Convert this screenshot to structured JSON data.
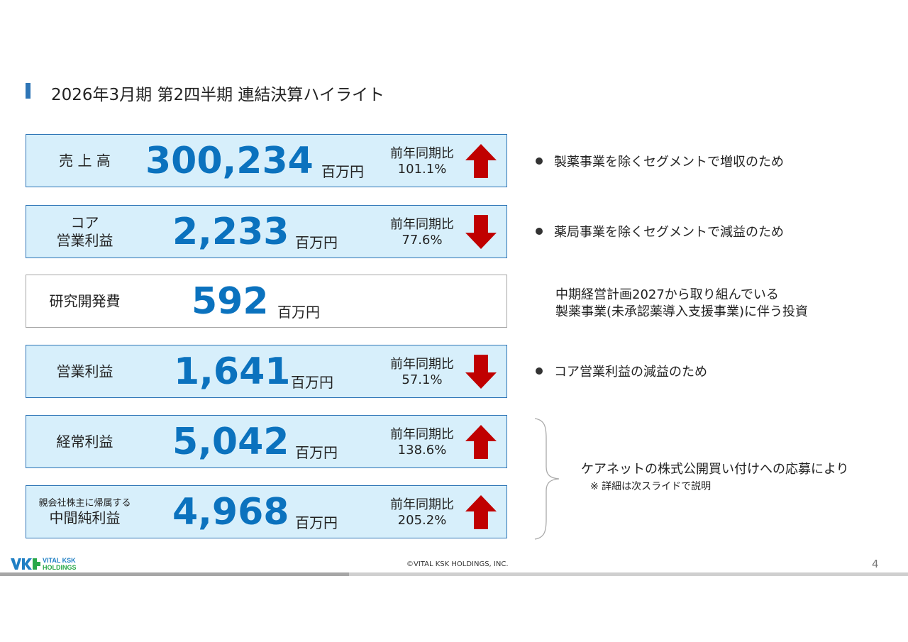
{
  "title": "2026年3月期  第2四半期  連結決算ハイライト",
  "rows": [
    {
      "label": "売 上 高",
      "value": "300,234",
      "unit": "百万円",
      "cmp_label": "前年同期比",
      "cmp_value": "101.1%",
      "trend": "up-arrow-icon"
    },
    {
      "label_line1": "コア",
      "label": "営業利益",
      "value": "2,233",
      "unit": "百万円",
      "cmp_label": "前年同期比",
      "cmp_value": "77.6%",
      "trend": "down-arrow-icon"
    },
    {
      "label": "研究開発費",
      "value": "592",
      "unit": "百万円"
    },
    {
      "label": "営業利益",
      "value": "1,641",
      "unit": "百万円",
      "cmp_label": "前年同期比",
      "cmp_value": "57.1%",
      "trend": "down-arrow-icon"
    },
    {
      "label": "経常利益",
      "value": "5,042",
      "unit": "百万円",
      "cmp_label": "前年同期比",
      "cmp_value": "138.6%",
      "trend": "up-arrow-icon"
    },
    {
      "label_line1": "親会社株主に帰属する",
      "label": "中間純利益",
      "value": "4,968",
      "unit": "百万円",
      "cmp_label": "前年同期比",
      "cmp_value": "205.2%",
      "trend": "up-arrow-icon"
    }
  ],
  "notes": {
    "sales": "製薬事業を除くセグメントで増収のため",
    "core": "薬局事業を除くセグメントで減益のため",
    "rd_line1": "中期経営計画2027から取り組んでいる",
    "rd_line2": "製薬事業(未承認薬導入支援事業)に伴う投資",
    "op": "コア営業利益の減益のため",
    "tob": "ケアネットの株式公開買い付けへの応募により",
    "tob_sub": "※ 詳細は次スライドで説明"
  },
  "footer": {
    "logo_line1": "VITAL KSK",
    "logo_line2": "HOLDINGS",
    "copyright": "©VITAL KSK HOLDINGS, INC.",
    "page": "4"
  },
  "colors": {
    "accent": "#2e75b6",
    "number": "#0b72be",
    "box_fill": "#d7effb",
    "arrow": "#c00000"
  }
}
